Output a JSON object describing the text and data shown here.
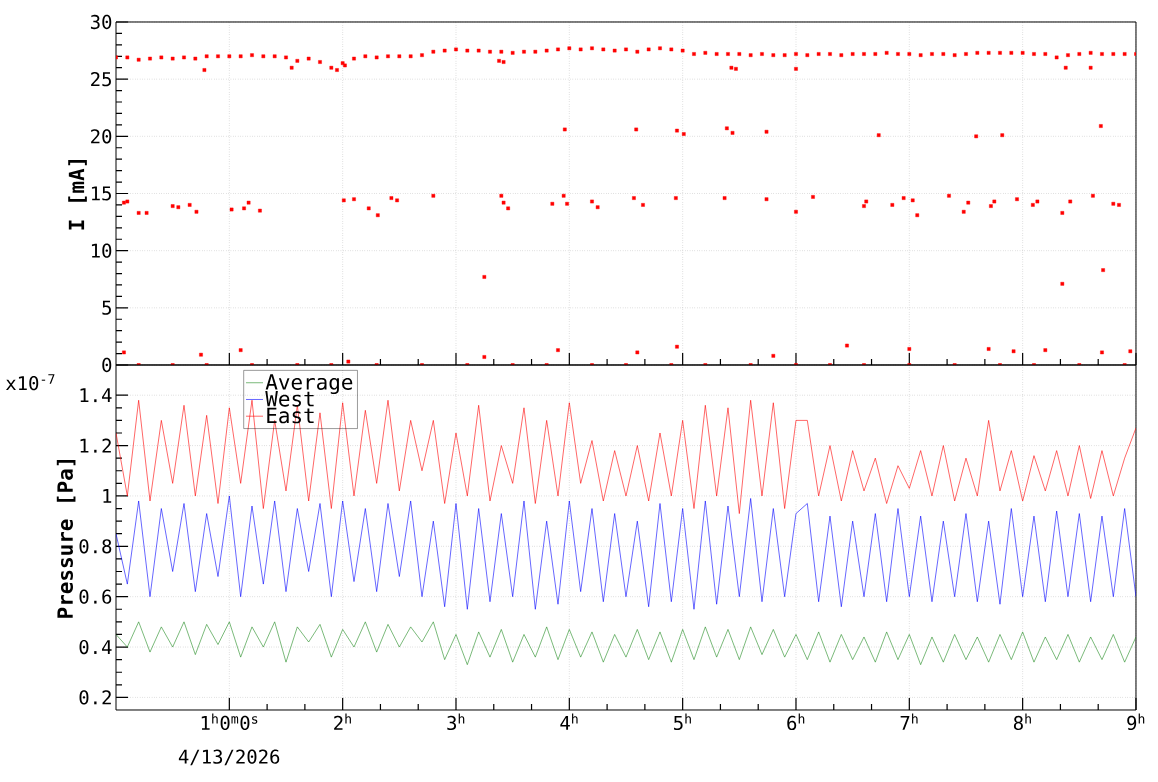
{
  "chart_data": [
    {
      "type": "scatter",
      "ylabel": "I [mA]",
      "xlim": [
        0,
        9
      ],
      "ylim": [
        0,
        30
      ],
      "xticks": [
        1,
        2,
        3,
        4,
        5,
        6,
        7,
        8,
        9
      ],
      "yticks": [
        0,
        5,
        10,
        15,
        20,
        25,
        30
      ],
      "tick_labels": "y",
      "grid": true,
      "marker": "square",
      "color": "#ff0000",
      "x": [
        0,
        0.1,
        0.2,
        0.3,
        0.4,
        0.5,
        0.6,
        0.7,
        0.8,
        0.9,
        1.0,
        1.1,
        1.2,
        1.3,
        1.4,
        1.5,
        1.55,
        1.6,
        1.7,
        1.8,
        1.9,
        1.95,
        2.0,
        2.1,
        2.2,
        2.3,
        2.4,
        2.5,
        2.6,
        2.7,
        2.8,
        2.9,
        3.0,
        3.1,
        3.2,
        3.3,
        3.4,
        3.5,
        3.6,
        3.7,
        3.8,
        3.9,
        4.0,
        4.1,
        4.2,
        4.3,
        4.4,
        4.5,
        4.6,
        4.7,
        4.8,
        4.9,
        5.0,
        5.1,
        5.2,
        5.3,
        5.4,
        5.5,
        5.6,
        5.7,
        5.8,
        5.9,
        6.0,
        6.1,
        6.2,
        6.3,
        6.4,
        6.5,
        6.6,
        6.7,
        6.8,
        6.9,
        7.0,
        7.1,
        7.2,
        7.3,
        7.4,
        7.5,
        7.6,
        7.7,
        7.8,
        7.9,
        8.0,
        8.1,
        8.2,
        8.3,
        8.4,
        8.5,
        8.6,
        8.7,
        8.8,
        8.9,
        9.0,
        0.78,
        2.02,
        3.38,
        3.42,
        5.47,
        5.43,
        6.0,
        8.38,
        8.6,
        3.96,
        4.59,
        4.95,
        5.39,
        5.01,
        5.44,
        5.74,
        6.73,
        7.59,
        7.82,
        8.69,
        0.07,
        0.1,
        0.2,
        0.27,
        0.5,
        0.55,
        0.65,
        0.71,
        1.02,
        1.13,
        1.17,
        1.27,
        2.01,
        2.1,
        2.23,
        2.31,
        2.43,
        2.48,
        2.8,
        3.4,
        3.42,
        3.46,
        3.85,
        3.95,
        3.98,
        4.2,
        4.25,
        4.57,
        4.65,
        4.94,
        5.37,
        5.74,
        6.0,
        6.15,
        6.6,
        6.62,
        6.85,
        6.95,
        7.03,
        7.07,
        7.35,
        7.48,
        7.52,
        7.72,
        7.75,
        7.95,
        8.09,
        8.13,
        8.35,
        8.42,
        8.62,
        8.8,
        8.85,
        3.25,
        8.35,
        8.71,
        0.07,
        0.75,
        1.1,
        2.05,
        3.25,
        3.9,
        4.6,
        4.95,
        5.8,
        6.45,
        7.0,
        7.7,
        7.92,
        8.2,
        8.7,
        8.95,
        0.2,
        0.5,
        0.8,
        1.2,
        1.6,
        1.9,
        2.3,
        2.7,
        3.1,
        3.5,
        3.8,
        4.2,
        4.5,
        4.9,
        5.2,
        5.6,
        6.0,
        6.3,
        6.6,
        7.0,
        7.4,
        7.8,
        8.1,
        8.5,
        8.9
      ],
      "values": [
        26.9,
        26.9,
        26.7,
        26.8,
        26.9,
        26.8,
        26.9,
        26.8,
        27.0,
        27.0,
        27.0,
        27.0,
        27.1,
        27.0,
        27.0,
        26.9,
        26.0,
        26.6,
        26.8,
        26.5,
        26.0,
        25.8,
        26.4,
        26.8,
        27.0,
        26.9,
        27.0,
        27.0,
        27.0,
        27.1,
        27.4,
        27.5,
        27.6,
        27.5,
        27.5,
        27.4,
        27.4,
        27.3,
        27.4,
        27.4,
        27.5,
        27.6,
        27.7,
        27.6,
        27.7,
        27.6,
        27.5,
        27.6,
        27.4,
        27.6,
        27.7,
        27.6,
        27.5,
        27.2,
        27.3,
        27.2,
        27.2,
        27.2,
        27.1,
        27.2,
        27.1,
        27.1,
        27.2,
        27.1,
        27.2,
        27.2,
        27.1,
        27.2,
        27.2,
        27.2,
        27.3,
        27.2,
        27.2,
        27.1,
        27.2,
        27.2,
        27.1,
        27.2,
        27.3,
        27.3,
        27.3,
        27.3,
        27.3,
        27.2,
        27.2,
        26.9,
        27.1,
        27.2,
        27.3,
        27.2,
        27.2,
        27.2,
        27.2,
        25.8,
        26.2,
        26.6,
        26.5,
        25.9,
        26.0,
        25.9,
        26.0,
        26.0,
        20.6,
        20.6,
        20.5,
        20.7,
        20.2,
        20.3,
        20.4,
        20.1,
        20.0,
        20.1,
        20.9,
        14.2,
        14.3,
        13.3,
        13.3,
        13.9,
        13.8,
        14.0,
        13.4,
        13.6,
        13.7,
        14.2,
        13.5,
        14.4,
        14.5,
        13.7,
        13.1,
        14.6,
        14.4,
        14.8,
        14.8,
        14.2,
        13.7,
        14.1,
        14.8,
        14.1,
        14.3,
        13.8,
        14.6,
        14.0,
        14.6,
        14.6,
        14.5,
        13.4,
        14.7,
        13.9,
        14.3,
        14.0,
        14.6,
        14.4,
        13.1,
        14.8,
        13.4,
        14.2,
        13.9,
        14.3,
        14.5,
        14.0,
        14.3,
        13.3,
        14.3,
        14.8,
        14.1,
        14.0,
        7.7,
        7.1,
        8.3,
        1.1,
        0.9,
        1.3,
        0.3,
        0.7,
        1.3,
        1.1,
        1.6,
        0.8,
        1.7,
        1.4,
        1.4,
        1.2,
        1.3,
        1.1,
        1.2,
        0,
        0,
        0,
        0,
        0,
        0,
        0,
        0,
        0,
        0,
        0,
        0,
        0,
        0,
        0,
        0,
        0,
        0,
        0,
        0,
        0,
        0,
        0,
        0,
        0
      ]
    },
    {
      "type": "line",
      "ylabel": "Pressure [Pa]",
      "xlim": [
        0,
        9
      ],
      "ylim": [
        0.15,
        1.52
      ],
      "xticks": [
        {
          "value": 1,
          "label": "1$^{h}$0$^{m}$0$^{s}$"
        },
        {
          "value": 2,
          "label": "2$^{h}$"
        },
        {
          "value": 3,
          "label": "3$^{h}$"
        },
        {
          "value": 4,
          "label": "4$^{h}$"
        },
        {
          "value": 5,
          "label": "5$^{h}$"
        },
        {
          "value": 6,
          "label": "6$^{h}$"
        },
        {
          "value": 7,
          "label": "7$^{h}$"
        },
        {
          "value": 8,
          "label": "8$^{h}$"
        },
        {
          "value": 9,
          "label": "9$^{h}$"
        }
      ],
      "yticks": [
        0.2,
        0.4,
        0.6,
        0.8,
        1,
        1.2,
        1.4
      ],
      "grid": true,
      "legend": "top left",
      "line_style": "solid",
      "annotations": [
        "x10$^{-7}$",
        "4/13/2026"
      ],
      "x": [
        0,
        0.1,
        0.2,
        0.3,
        0.4,
        0.5,
        0.6,
        0.7,
        0.8,
        0.9,
        1.0,
        1.1,
        1.2,
        1.3,
        1.4,
        1.5,
        1.6,
        1.7,
        1.8,
        1.9,
        2.0,
        2.1,
        2.2,
        2.3,
        2.4,
        2.5,
        2.6,
        2.7,
        2.8,
        2.9,
        3.0,
        3.1,
        3.2,
        3.3,
        3.4,
        3.5,
        3.6,
        3.7,
        3.8,
        3.9,
        4.0,
        4.1,
        4.2,
        4.3,
        4.4,
        4.5,
        4.6,
        4.7,
        4.8,
        4.9,
        5.0,
        5.1,
        5.2,
        5.3,
        5.4,
        5.5,
        5.6,
        5.7,
        5.8,
        5.9,
        6.0,
        6.1,
        6.2,
        6.3,
        6.4,
        6.5,
        6.6,
        6.7,
        6.8,
        6.9,
        7.0,
        7.1,
        7.2,
        7.3,
        7.4,
        7.5,
        7.6,
        7.7,
        7.8,
        7.9,
        8.0,
        8.1,
        8.2,
        8.3,
        8.4,
        8.5,
        8.6,
        8.7,
        8.8,
        8.9,
        9.0
      ],
      "series": [
        {
          "name": "Average",
          "color": "#228b22",
          "values": [
            0.45,
            0.4,
            0.5,
            0.38,
            0.48,
            0.4,
            0.5,
            0.37,
            0.49,
            0.41,
            0.5,
            0.36,
            0.48,
            0.4,
            0.5,
            0.34,
            0.48,
            0.42,
            0.49,
            0.36,
            0.47,
            0.4,
            0.5,
            0.38,
            0.49,
            0.4,
            0.48,
            0.42,
            0.5,
            0.35,
            0.45,
            0.33,
            0.46,
            0.36,
            0.47,
            0.34,
            0.45,
            0.36,
            0.48,
            0.35,
            0.47,
            0.36,
            0.46,
            0.34,
            0.45,
            0.36,
            0.47,
            0.35,
            0.46,
            0.34,
            0.47,
            0.35,
            0.48,
            0.36,
            0.47,
            0.35,
            0.48,
            0.37,
            0.47,
            0.36,
            0.45,
            0.35,
            0.46,
            0.34,
            0.45,
            0.35,
            0.44,
            0.34,
            0.46,
            0.35,
            0.45,
            0.33,
            0.44,
            0.34,
            0.45,
            0.35,
            0.44,
            0.34,
            0.45,
            0.35,
            0.46,
            0.34,
            0.44,
            0.35,
            0.45,
            0.34,
            0.44,
            0.35,
            0.45,
            0.34,
            0.44
          ]
        },
        {
          "name": "West",
          "color": "#0000ff",
          "values": [
            0.85,
            0.65,
            0.98,
            0.6,
            0.95,
            0.7,
            0.97,
            0.62,
            0.93,
            0.68,
            1.0,
            0.6,
            0.96,
            0.65,
            0.98,
            0.62,
            0.95,
            0.7,
            0.97,
            0.6,
            0.98,
            0.66,
            0.95,
            0.62,
            0.97,
            0.68,
            0.98,
            0.6,
            0.9,
            0.56,
            0.97,
            0.55,
            0.95,
            0.58,
            0.93,
            0.6,
            0.98,
            0.55,
            0.9,
            0.57,
            0.98,
            0.62,
            0.95,
            0.58,
            0.93,
            0.6,
            0.9,
            0.56,
            0.97,
            0.58,
            0.95,
            0.55,
            0.98,
            0.57,
            0.96,
            0.6,
            0.99,
            0.58,
            0.95,
            0.6,
            0.93,
            0.97,
            0.58,
            0.92,
            0.56,
            0.9,
            0.6,
            0.93,
            0.58,
            0.95,
            0.6,
            0.92,
            0.58,
            0.9,
            0.6,
            0.93,
            0.58,
            0.9,
            0.57,
            0.95,
            0.6,
            0.92,
            0.58,
            0.94,
            0.6,
            0.93,
            0.58,
            0.92,
            0.6,
            0.95,
            0.6
          ]
        },
        {
          "name": "East",
          "color": "#ff0000",
          "values": [
            1.25,
            1.0,
            1.38,
            0.98,
            1.3,
            1.05,
            1.36,
            1.0,
            1.32,
            0.97,
            1.35,
            1.05,
            1.38,
            0.95,
            1.3,
            1.02,
            1.36,
            0.98,
            1.33,
            0.95,
            1.37,
            1.0,
            1.34,
            1.05,
            1.38,
            1.02,
            1.3,
            1.1,
            1.3,
            0.97,
            1.25,
            1.0,
            1.36,
            0.98,
            1.2,
            1.05,
            1.35,
            0.97,
            1.3,
            1.0,
            1.37,
            1.05,
            1.22,
            0.98,
            1.18,
            1.0,
            1.2,
            0.98,
            1.25,
            1.0,
            1.3,
            0.95,
            1.36,
            1.0,
            1.35,
            0.93,
            1.38,
            1.0,
            1.37,
            0.95,
            1.3,
            1.3,
            1.0,
            1.2,
            0.98,
            1.18,
            1.02,
            1.15,
            0.97,
            1.12,
            1.03,
            1.18,
            1.0,
            1.2,
            0.98,
            1.15,
            1.0,
            1.3,
            1.02,
            1.18,
            0.98,
            1.16,
            1.02,
            1.18,
            1.0,
            1.2,
            0.99,
            1.18,
            1.0,
            1.15,
            1.27
          ]
        }
      ]
    }
  ]
}
